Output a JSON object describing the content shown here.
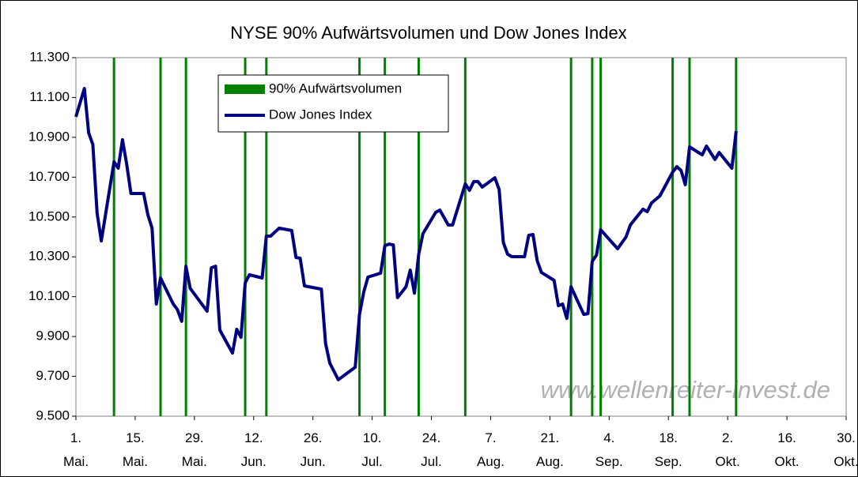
{
  "chart_data": {
    "type": "line",
    "title": "NYSE 90% Aufwärtsvolumen und Dow Jones Index",
    "watermark": "www.wellenreiter-invest.de",
    "xlim": [
      "05-01",
      "10-30"
    ],
    "xticks": [
      {
        "value": "05-01",
        "label": "1.\nMai."
      },
      {
        "value": "05-15",
        "label": "15.\nMai."
      },
      {
        "value": "05-29",
        "label": "29.\nMai."
      },
      {
        "value": "06-12",
        "label": "12.\nJun."
      },
      {
        "value": "06-26",
        "label": "26.\nJun."
      },
      {
        "value": "07-10",
        "label": "10.\nJul."
      },
      {
        "value": "07-24",
        "label": "24.\nJul."
      },
      {
        "value": "08-07",
        "label": "7.\nAug."
      },
      {
        "value": "08-21",
        "label": "21.\nAug."
      },
      {
        "value": "09-04",
        "label": "4.\nSep."
      },
      {
        "value": "09-18",
        "label": "18.\nSep."
      },
      {
        "value": "10-02",
        "label": "2.\nOkt."
      },
      {
        "value": "10-16",
        "label": "16.\nOkt."
      },
      {
        "value": "10-30",
        "label": "30.\nOkt."
      }
    ],
    "ylim": [
      9500,
      11300
    ],
    "yticks": [
      {
        "value": 9500,
        "label": "9.500"
      },
      {
        "value": 9700,
        "label": "9.700"
      },
      {
        "value": 9900,
        "label": "9.900"
      },
      {
        "value": 10100,
        "label": "10.100"
      },
      {
        "value": 10300,
        "label": "10.300"
      },
      {
        "value": 10500,
        "label": "10.500"
      },
      {
        "value": 10700,
        "label": "10.700"
      },
      {
        "value": 10900,
        "label": "10.900"
      },
      {
        "value": 11100,
        "label": "11.100"
      },
      {
        "value": 11300,
        "label": "11.300"
      }
    ],
    "series": [
      {
        "name": "90% Aufwärtsvolumen",
        "color": "#008000",
        "x": [
          "05-10",
          "05-21",
          "05-27",
          "06-10",
          "06-15",
          "07-07",
          "07-13",
          "07-21",
          "08-01",
          "08-26",
          "08-31",
          "09-02",
          "09-19",
          "09-23",
          "10-04"
        ]
      },
      {
        "name": "Dow Jones Index",
        "color": "#000080",
        "x": [
          "05-01",
          "05-03",
          "05-04",
          "05-05",
          "05-06",
          "05-07",
          "05-10",
          "05-11",
          "05-12",
          "05-13",
          "05-14",
          "05-17",
          "05-18",
          "05-19",
          "05-20",
          "05-21",
          "05-24",
          "05-25",
          "05-26",
          "05-27",
          "05-28",
          "06-01",
          "06-02",
          "06-03",
          "06-04",
          "06-07",
          "06-08",
          "06-09",
          "06-10",
          "06-11",
          "06-14",
          "06-15",
          "06-16",
          "06-18",
          "06-21",
          "06-22",
          "06-23",
          "06-24",
          "06-28",
          "06-29",
          "06-30",
          "07-02",
          "07-06",
          "07-07",
          "07-08",
          "07-09",
          "07-12",
          "07-13",
          "07-14",
          "07-15",
          "07-16",
          "07-18",
          "07-19",
          "07-20",
          "07-21",
          "07-22",
          "07-25",
          "07-26",
          "07-28",
          "07-29",
          "08-01",
          "08-02",
          "08-03",
          "08-04",
          "08-05",
          "08-08",
          "08-09",
          "08-10",
          "08-11",
          "08-12",
          "08-15",
          "08-16",
          "08-17",
          "08-18",
          "08-19",
          "08-22",
          "08-23",
          "08-24",
          "08-25",
          "08-26",
          "08-29",
          "08-30",
          "08-31",
          "09-01",
          "09-02",
          "09-06",
          "09-08",
          "09-09",
          "09-12",
          "09-13",
          "09-14",
          "09-16",
          "09-19",
          "09-20",
          "09-21",
          "09-22",
          "09-23",
          "09-26",
          "09-27",
          "09-29",
          "09-30",
          "10-03",
          "10-04"
        ],
        "values": [
          11003,
          11145,
          10923,
          10864,
          10519,
          10380,
          10777,
          10745,
          10888,
          10765,
          10618,
          10618,
          10511,
          10444,
          10063,
          10194,
          10063,
          10035,
          9976,
          10253,
          10142,
          10027,
          10245,
          10253,
          9932,
          9817,
          9936,
          9896,
          10170,
          10210,
          10194,
          10404,
          10404,
          10444,
          10432,
          10297,
          10293,
          10154,
          10138,
          9865,
          9766,
          9683,
          9746,
          10011,
          10122,
          10198,
          10218,
          10356,
          10364,
          10360,
          10095,
          10150,
          10233,
          10118,
          10313,
          10416,
          10523,
          10535,
          10460,
          10460,
          10666,
          10634,
          10678,
          10678,
          10650,
          10697,
          10638,
          10372,
          10313,
          10301,
          10301,
          10408,
          10412,
          10281,
          10221,
          10182,
          10055,
          10063,
          9991,
          10150,
          10011,
          10015,
          10277,
          10309,
          10436,
          10341,
          10400,
          10460,
          10539,
          10527,
          10570,
          10606,
          10725,
          10753,
          10733,
          10662,
          10852,
          10812,
          10856,
          10789,
          10824,
          10745,
          10931
        ]
      }
    ]
  }
}
